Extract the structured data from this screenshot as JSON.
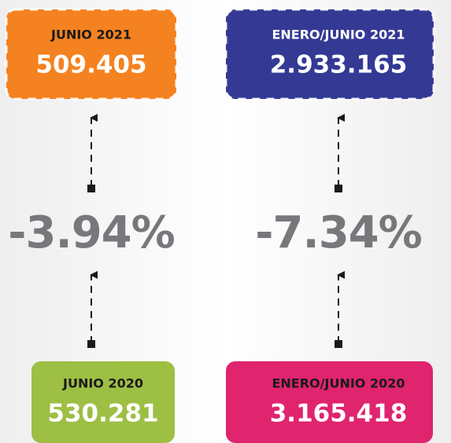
{
  "columns": [
    {
      "top": {
        "label": "JUNIO 2021",
        "value": "509.405"
      },
      "change": "-3.94%",
      "bottom": {
        "label": "JUNIO 2020",
        "value": "530.281"
      }
    },
    {
      "top": {
        "label": "ENERO/JUNIO 2021",
        "value": "2.933.165"
      },
      "change": "-7.34%",
      "bottom": {
        "label": "ENERO/JUNIO 2020",
        "value": "3.165.418"
      }
    }
  ]
}
